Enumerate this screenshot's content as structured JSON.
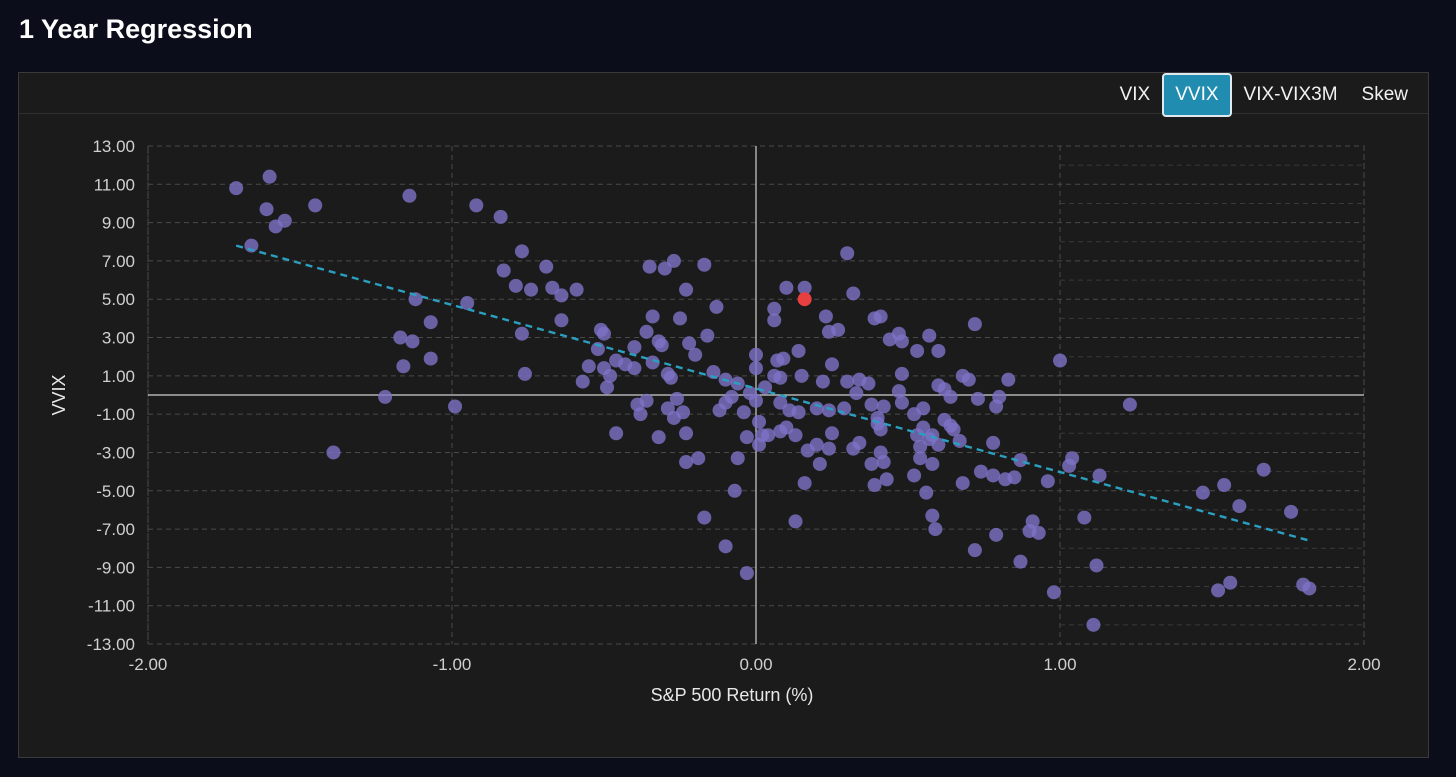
{
  "page": {
    "title": "1 Year Regression"
  },
  "tabs": [
    {
      "label": "VIX",
      "active": false
    },
    {
      "label": "VVIX",
      "active": true
    },
    {
      "label": "VIX-VIX3M",
      "active": false
    },
    {
      "label": "Skew",
      "active": false
    }
  ],
  "colors": {
    "point": "#7c72c4",
    "highlight": "#e84040",
    "trend": "#2a9fc0",
    "active_tab": "#1f8cb0"
  },
  "chart_data": {
    "type": "scatter",
    "xlabel": "S&P 500 Return (%)",
    "ylabel": "VVIX",
    "xlim": [
      -2.0,
      2.0
    ],
    "ylim": [
      -13.0,
      13.0
    ],
    "x_ticks": [
      "-2.00",
      "-1.00",
      "0.00",
      "1.00",
      "2.00"
    ],
    "y_ticks": [
      "13.00",
      "11.00",
      "9.00",
      "7.00",
      "5.00",
      "3.00",
      "1.00",
      "-1.00",
      "-3.00",
      "-5.00",
      "-7.00",
      "-9.00",
      "-11.00",
      "-13.00"
    ],
    "grid": true,
    "highlight_point": [
      0.16,
      5.0
    ],
    "trendline": {
      "x": [
        -1.71,
        1.82
      ],
      "y": [
        7.8,
        -7.6
      ]
    },
    "points": [
      [
        -1.71,
        10.8
      ],
      [
        -1.6,
        11.4
      ],
      [
        -1.61,
        9.7
      ],
      [
        -1.55,
        9.1
      ],
      [
        -1.58,
        8.8
      ],
      [
        -1.66,
        7.8
      ],
      [
        -1.45,
        9.9
      ],
      [
        -1.14,
        10.4
      ],
      [
        -0.92,
        9.9
      ],
      [
        -0.84,
        9.3
      ],
      [
        -1.12,
        5.0
      ],
      [
        -0.95,
        4.8
      ],
      [
        -1.07,
        3.8
      ],
      [
        -1.17,
        3.0
      ],
      [
        -1.13,
        2.8
      ],
      [
        -1.07,
        1.9
      ],
      [
        -1.16,
        1.5
      ],
      [
        -1.22,
        -0.1
      ],
      [
        -0.99,
        -0.6
      ],
      [
        -1.39,
        -3.0
      ],
      [
        -0.83,
        6.5
      ],
      [
        -0.77,
        7.5
      ],
      [
        -0.69,
        6.7
      ],
      [
        -0.79,
        5.7
      ],
      [
        -0.74,
        5.5
      ],
      [
        -0.67,
        5.6
      ],
      [
        -0.64,
        5.2
      ],
      [
        -0.59,
        5.5
      ],
      [
        -0.77,
        3.2
      ],
      [
        -0.64,
        3.9
      ],
      [
        -0.76,
        1.1
      ],
      [
        -0.35,
        6.7
      ],
      [
        -0.27,
        7.0
      ],
      [
        -0.3,
        6.6
      ],
      [
        -0.17,
        6.8
      ],
      [
        -0.23,
        5.5
      ],
      [
        -0.34,
        4.1
      ],
      [
        -0.25,
        4.0
      ],
      [
        -0.13,
        4.6
      ],
      [
        -0.51,
        3.4
      ],
      [
        -0.5,
        3.2
      ],
      [
        -0.36,
        3.3
      ],
      [
        -0.32,
        2.8
      ],
      [
        -0.31,
        2.6
      ],
      [
        -0.22,
        2.7
      ],
      [
        -0.16,
        3.1
      ],
      [
        -0.52,
        2.4
      ],
      [
        -0.4,
        2.5
      ],
      [
        -0.2,
        2.1
      ],
      [
        -0.55,
        1.5
      ],
      [
        -0.5,
        1.4
      ],
      [
        -0.46,
        1.8
      ],
      [
        -0.43,
        1.6
      ],
      [
        -0.34,
        1.7
      ],
      [
        -0.4,
        1.4
      ],
      [
        -0.57,
        0.7
      ],
      [
        -0.48,
        1.0
      ],
      [
        -0.49,
        0.4
      ],
      [
        -0.29,
        1.1
      ],
      [
        -0.28,
        0.9
      ],
      [
        -0.14,
        1.2
      ],
      [
        -0.1,
        0.8
      ],
      [
        -0.06,
        0.6
      ],
      [
        -0.39,
        -0.5
      ],
      [
        -0.36,
        -0.3
      ],
      [
        -0.38,
        -1.0
      ],
      [
        -0.29,
        -0.7
      ],
      [
        -0.26,
        -0.2
      ],
      [
        -0.27,
        -1.2
      ],
      [
        -0.24,
        -0.9
      ],
      [
        -0.46,
        -2.0
      ],
      [
        -0.32,
        -2.2
      ],
      [
        -0.23,
        -2.0
      ],
      [
        -0.19,
        -3.3
      ],
      [
        -0.23,
        -3.5
      ],
      [
        -0.12,
        -0.8
      ],
      [
        -0.1,
        -0.4
      ],
      [
        -0.08,
        -0.1
      ],
      [
        -0.04,
        -0.9
      ],
      [
        -0.03,
        -2.2
      ],
      [
        -0.06,
        -3.3
      ],
      [
        -0.07,
        -5.0
      ],
      [
        -0.1,
        -7.9
      ],
      [
        -0.03,
        -9.3
      ],
      [
        -0.17,
        -6.4
      ],
      [
        -0.02,
        0.1
      ],
      [
        0.0,
        -0.3
      ],
      [
        0.0,
        2.1
      ],
      [
        0.01,
        -1.4
      ],
      [
        0.02,
        -2.1
      ],
      [
        0.01,
        -2.6
      ],
      [
        0.04,
        -2.1
      ],
      [
        0.03,
        0.4
      ],
      [
        0.0,
        1.4
      ],
      [
        0.06,
        1.0
      ],
      [
        0.07,
        1.8
      ],
      [
        0.09,
        1.9
      ],
      [
        0.14,
        2.3
      ],
      [
        0.06,
        3.9
      ],
      [
        0.06,
        4.5
      ],
      [
        0.1,
        5.6
      ],
      [
        0.16,
        5.6
      ],
      [
        0.08,
        0.9
      ],
      [
        0.08,
        -0.4
      ],
      [
        0.11,
        -0.8
      ],
      [
        0.1,
        -1.7
      ],
      [
        0.08,
        -1.9
      ],
      [
        0.13,
        -2.1
      ],
      [
        0.14,
        -0.9
      ],
      [
        0.15,
        1.0
      ],
      [
        0.17,
        -2.9
      ],
      [
        0.16,
        -4.6
      ],
      [
        0.13,
        -6.6
      ],
      [
        0.2,
        -0.7
      ],
      [
        0.24,
        -0.8
      ],
      [
        0.22,
        0.7
      ],
      [
        0.25,
        1.6
      ],
      [
        0.23,
        4.1
      ],
      [
        0.24,
        3.3
      ],
      [
        0.27,
        3.4
      ],
      [
        0.2,
        -2.6
      ],
      [
        0.24,
        -2.8
      ],
      [
        0.25,
        -2.0
      ],
      [
        0.21,
        -3.6
      ],
      [
        0.3,
        7.4
      ],
      [
        0.32,
        5.3
      ],
      [
        0.3,
        0.7
      ],
      [
        0.34,
        0.8
      ],
      [
        0.37,
        0.6
      ],
      [
        0.33,
        0.1
      ],
      [
        0.29,
        -0.7
      ],
      [
        0.32,
        -2.8
      ],
      [
        0.34,
        -2.5
      ],
      [
        0.38,
        -0.5
      ],
      [
        0.42,
        -0.6
      ],
      [
        0.4,
        -1.2
      ],
      [
        0.4,
        -1.5
      ],
      [
        0.41,
        -1.8
      ],
      [
        0.38,
        -3.6
      ],
      [
        0.41,
        -3.0
      ],
      [
        0.42,
        -3.5
      ],
      [
        0.39,
        -4.7
      ],
      [
        0.43,
        -4.4
      ],
      [
        0.39,
        4.0
      ],
      [
        0.41,
        4.1
      ],
      [
        0.44,
        2.9
      ],
      [
        0.47,
        3.2
      ],
      [
        0.48,
        2.8
      ],
      [
        0.53,
        2.3
      ],
      [
        0.57,
        3.1
      ],
      [
        0.48,
        1.1
      ],
      [
        0.47,
        0.2
      ],
      [
        0.48,
        -0.4
      ],
      [
        0.52,
        -1.0
      ],
      [
        0.55,
        -0.7
      ],
      [
        0.53,
        -2.1
      ],
      [
        0.55,
        -1.7
      ],
      [
        0.57,
        -2.3
      ],
      [
        0.54,
        -2.7
      ],
      [
        0.58,
        -2.1
      ],
      [
        0.6,
        -2.6
      ],
      [
        0.54,
        -3.3
      ],
      [
        0.58,
        -3.6
      ],
      [
        0.52,
        -4.2
      ],
      [
        0.56,
        -5.1
      ],
      [
        0.58,
        -6.3
      ],
      [
        0.59,
        -7.0
      ],
      [
        0.6,
        2.3
      ],
      [
        0.6,
        0.5
      ],
      [
        0.62,
        0.3
      ],
      [
        0.64,
        -0.1
      ],
      [
        0.62,
        -1.3
      ],
      [
        0.64,
        -1.6
      ],
      [
        0.65,
        -1.8
      ],
      [
        0.67,
        -2.4
      ],
      [
        0.68,
        1.0
      ],
      [
        0.7,
        0.8
      ],
      [
        0.73,
        -0.2
      ],
      [
        0.72,
        3.7
      ],
      [
        0.68,
        -4.6
      ],
      [
        0.72,
        -8.1
      ],
      [
        0.74,
        -4.0
      ],
      [
        0.78,
        -2.5
      ],
      [
        0.78,
        -4.2
      ],
      [
        0.79,
        -7.3
      ],
      [
        0.79,
        -0.6
      ],
      [
        0.8,
        -0.1
      ],
      [
        0.83,
        0.8
      ],
      [
        0.82,
        -4.4
      ],
      [
        0.85,
        -4.3
      ],
      [
        0.87,
        -3.4
      ],
      [
        0.87,
        -8.7
      ],
      [
        0.91,
        -6.6
      ],
      [
        0.9,
        -7.1
      ],
      [
        0.93,
        -7.2
      ],
      [
        0.96,
        -4.5
      ],
      [
        0.98,
        -10.3
      ],
      [
        1.0,
        1.8
      ],
      [
        1.03,
        -3.7
      ],
      [
        1.04,
        -3.3
      ],
      [
        1.08,
        -6.4
      ],
      [
        1.12,
        -8.9
      ],
      [
        1.13,
        -4.2
      ],
      [
        1.11,
        -12.0
      ],
      [
        1.23,
        -0.5
      ],
      [
        1.47,
        -5.1
      ],
      [
        1.54,
        -4.7
      ],
      [
        1.59,
        -5.8
      ],
      [
        1.52,
        -10.2
      ],
      [
        1.56,
        -9.8
      ],
      [
        1.67,
        -3.9
      ],
      [
        1.76,
        -6.1
      ],
      [
        1.8,
        -9.9
      ],
      [
        1.82,
        -10.1
      ]
    ]
  }
}
